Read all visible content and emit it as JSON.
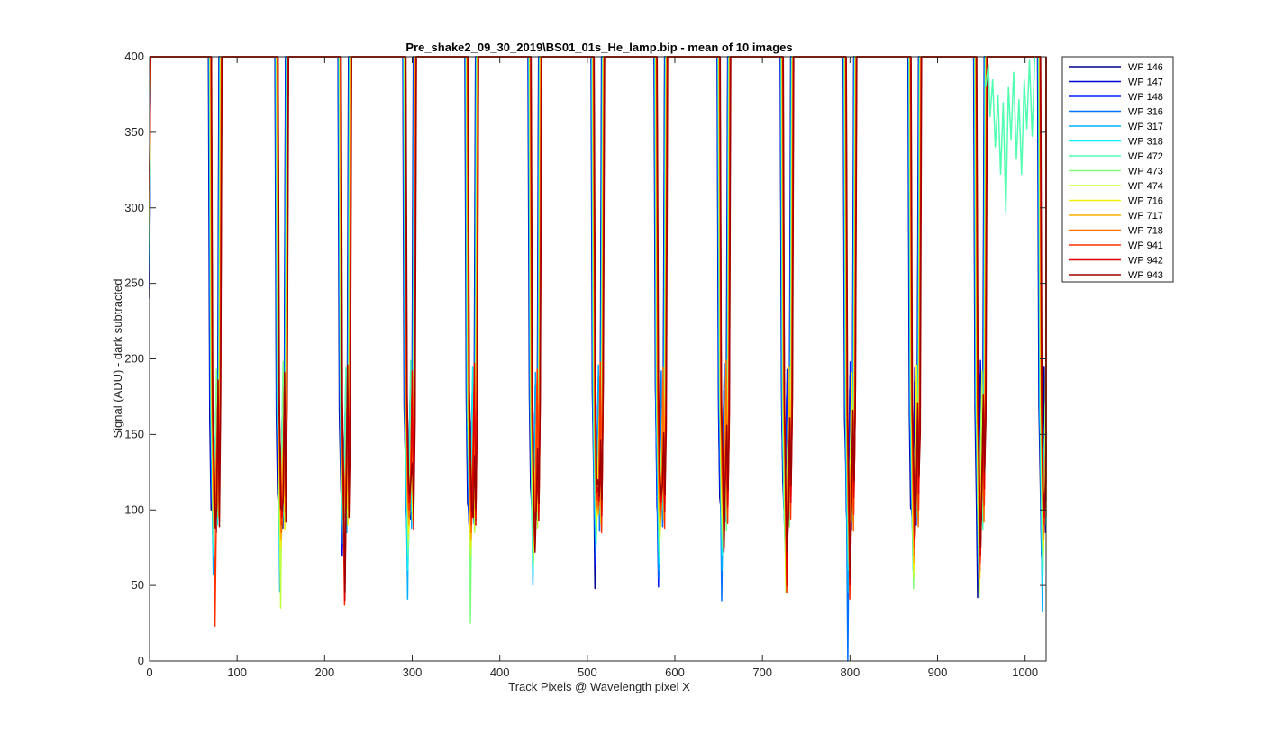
{
  "chart_data": {
    "type": "line",
    "title": "Pre_shake2_09_30_2019\\BS01_01s_He_lamp.bip - mean of 10 images",
    "xlabel": "Track Pixels @ Wavelength pixel X",
    "ylabel": "Signal (ADU) - dark subtracted",
    "xlim": [
      0,
      1024
    ],
    "ylim": [
      0,
      400
    ],
    "xticks": [
      0,
      100,
      200,
      300,
      400,
      500,
      600,
      700,
      800,
      900,
      1000
    ],
    "yticks": [
      0,
      50,
      100,
      150,
      200,
      250,
      300,
      350,
      400
    ],
    "grid": false,
    "legend_position": "outside-top-right",
    "dip_centers": [
      75,
      151,
      223,
      297,
      368,
      440,
      512,
      584,
      656,
      728,
      800,
      874,
      949,
      1022
    ],
    "series": [
      {
        "name": "WP 146",
        "color": "#00008F",
        "minima": [
          110,
          100,
          95,
          105,
          100,
          100,
          48,
          100,
          100,
          100,
          100,
          100,
          42,
          70
        ]
      },
      {
        "name": "WP 147",
        "color": "#0000CF",
        "minima": [
          105,
          95,
          70,
          90,
          90,
          95,
          60,
          95,
          95,
          95,
          90,
          95,
          50,
          68
        ]
      },
      {
        "name": "WP 148",
        "color": "#0020FF",
        "minima": [
          100,
          90,
          75,
          85,
          85,
          90,
          65,
          49,
          90,
          90,
          85,
          90,
          60,
          72
        ]
      },
      {
        "name": "WP 316",
        "color": "#0070FF",
        "minima": [
          95,
          88,
          78,
          80,
          80,
          85,
          70,
          55,
          40,
          85,
          0,
          85,
          65,
          75
        ]
      },
      {
        "name": "WP 317",
        "color": "#00B0FF",
        "minima": [
          57,
          46,
          85,
          41,
          78,
          50,
          75,
          60,
          60,
          80,
          45,
          70,
          70,
          33
        ]
      },
      {
        "name": "WP 318",
        "color": "#10F0F0",
        "minima": [
          70,
          60,
          90,
          60,
          70,
          58,
          78,
          65,
          70,
          75,
          60,
          60,
          75,
          50
        ]
      },
      {
        "name": "WP 472",
        "color": "#50FFB0",
        "minima": [
          75,
          65,
          95,
          70,
          65,
          62,
          80,
          70,
          75,
          70,
          65,
          65,
          80,
          60
        ]
      },
      {
        "name": "WP 473",
        "color": "#80FF80",
        "minima": [
          80,
          70,
          100,
          75,
          25,
          65,
          85,
          75,
          80,
          65,
          70,
          48,
          42,
          65
        ]
      },
      {
        "name": "WP 474",
        "color": "#C0FF40",
        "minima": [
          85,
          35,
          105,
          80,
          70,
          70,
          90,
          80,
          85,
          45,
          75,
          55,
          45,
          70
        ]
      },
      {
        "name": "WP 716",
        "color": "#F0F010",
        "minima": [
          90,
          75,
          110,
          85,
          75,
          75,
          95,
          85,
          90,
          50,
          80,
          60,
          50,
          75
        ]
      },
      {
        "name": "WP 717",
        "color": "#FFB000",
        "minima": [
          95,
          80,
          115,
          90,
          80,
          80,
          100,
          90,
          95,
          55,
          85,
          65,
          55,
          80
        ]
      },
      {
        "name": "WP 718",
        "color": "#FF7000",
        "minima": [
          100,
          85,
          120,
          95,
          85,
          85,
          105,
          95,
          100,
          60,
          90,
          70,
          60,
          85
        ]
      },
      {
        "name": "WP 941",
        "color": "#FF3000",
        "minima": [
          23,
          90,
          37,
          100,
          90,
          90,
          110,
          100,
          105,
          45,
          41,
          75,
          65,
          90
        ]
      },
      {
        "name": "WP 942",
        "color": "#E00000",
        "minima": [
          90,
          95,
          40,
          105,
          95,
          95,
          115,
          105,
          72,
          50,
          50,
          80,
          70,
          95
        ]
      },
      {
        "name": "WP 943",
        "color": "#A00000",
        "minima": [
          88,
          100,
          45,
          110,
          100,
          72,
          120,
          110,
          75,
          72,
          55,
          85,
          75,
          100
        ]
      }
    ],
    "noisy_segment": {
      "series": "WP 472",
      "x": [
        955,
        958,
        960,
        963,
        966,
        969,
        972,
        975,
        978,
        981,
        984,
        987,
        990,
        993,
        996,
        999,
        1002,
        1005,
        1008,
        1011
      ],
      "y": [
        380,
        395,
        360,
        385,
        340,
        375,
        322,
        370,
        297,
        380,
        345,
        390,
        332,
        372,
        322,
        385,
        352,
        398,
        347,
        400
      ]
    }
  }
}
